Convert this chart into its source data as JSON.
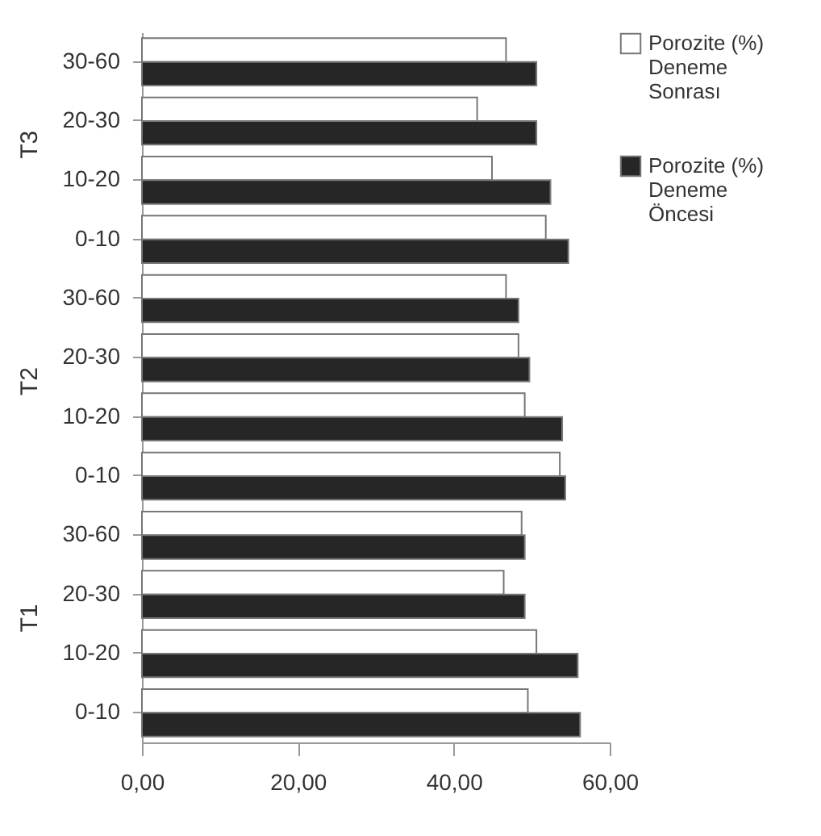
{
  "chart_data": {
    "type": "bar",
    "orientation": "horizontal",
    "categories": [
      "30-60",
      "20-30",
      "10-20",
      "0-10",
      "30-60",
      "20-30",
      "10-20",
      "0-10",
      "30-60",
      "20-30",
      "10-20",
      "0-10"
    ],
    "annotations": [
      "T3",
      "T2",
      "T1"
    ],
    "series": [
      {
        "name": "Porozite (%) Deneme Sonrası",
        "color": "#ffffff",
        "values": [
          46.7,
          43.0,
          44.9,
          51.8,
          46.7,
          48.3,
          49.1,
          53.6,
          48.7,
          46.4,
          50.6,
          49.5
        ]
      },
      {
        "name": "Porozite (%) Deneme Öncesi",
        "color": "#262626",
        "values": [
          50.6,
          50.6,
          52.4,
          54.7,
          48.3,
          49.7,
          53.9,
          54.3,
          49.1,
          49.1,
          55.9,
          56.2
        ]
      }
    ],
    "xlim": [
      0,
      60
    ],
    "xticks": [
      {
        "value": 0,
        "label": "0,00"
      },
      {
        "value": 20,
        "label": "20,00"
      },
      {
        "value": 40,
        "label": "40,00"
      },
      {
        "value": 60,
        "label": "60,00"
      }
    ],
    "grid": false,
    "legend": "right"
  }
}
